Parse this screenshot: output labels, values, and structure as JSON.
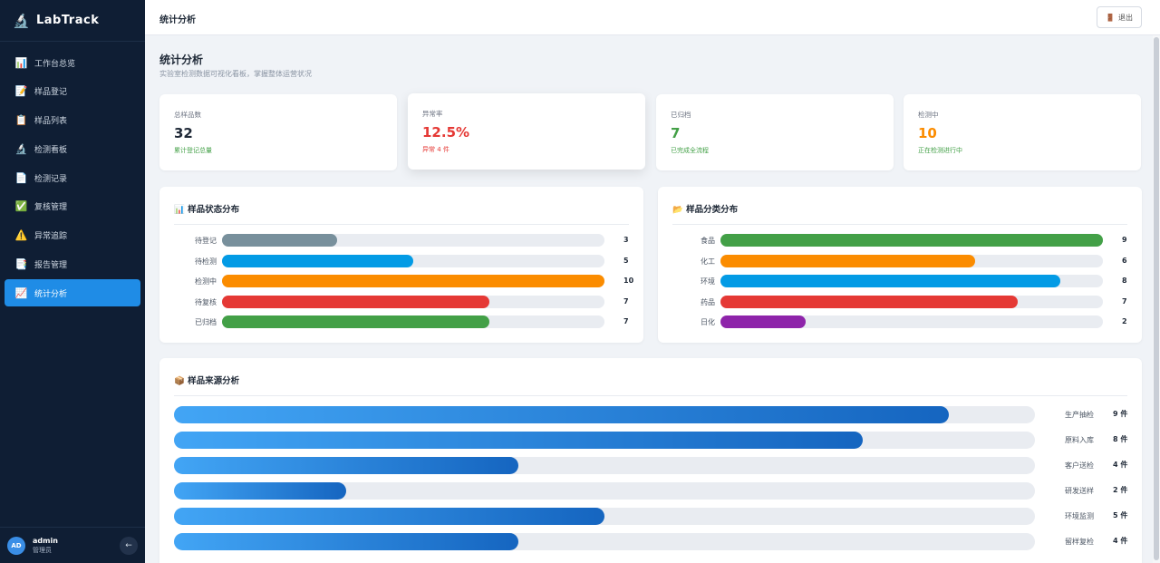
{
  "app": {
    "brand": "LabTrack",
    "brand_icon": "microscope-icon"
  },
  "sidebar": {
    "items": [
      {
        "label": "工作台总览",
        "icon": "📊",
        "icon_name": "bar-chart-icon"
      },
      {
        "label": "样品登记",
        "icon": "📝",
        "icon_name": "memo-icon"
      },
      {
        "label": "样品列表",
        "icon": "📋",
        "icon_name": "clipboard-icon"
      },
      {
        "label": "检测看板",
        "icon": "🔬",
        "icon_name": "microscope-icon"
      },
      {
        "label": "检测记录",
        "icon": "📄",
        "icon_name": "document-icon"
      },
      {
        "label": "复核管理",
        "icon": "✅",
        "icon_name": "check-icon"
      },
      {
        "label": "异常追踪",
        "icon": "⚠️",
        "icon_name": "warning-icon"
      },
      {
        "label": "报告管理",
        "icon": "📑",
        "icon_name": "report-icon"
      },
      {
        "label": "统计分析",
        "icon": "📈",
        "icon_name": "trend-chart-icon",
        "active": true
      }
    ],
    "user": {
      "avatar": "AD",
      "name": "admin",
      "role": "管理员",
      "logout_icon": "←"
    }
  },
  "header": {
    "title": "统计分析",
    "exit_label": "退出",
    "exit_icon": "🚪"
  },
  "page": {
    "title": "统计分析",
    "subtitle": "实验室检测数据可视化看板，掌握整体运营状况"
  },
  "stats": [
    {
      "label": "总样品数",
      "value": "32",
      "note": "累计登记总量",
      "value_color": "#1f2937",
      "note_color": "#43a047"
    },
    {
      "label": "异常率",
      "value": "12.5%",
      "note": "异常 4 件",
      "value_color": "#e53935",
      "note_color": "#e53935"
    },
    {
      "label": "已归档",
      "value": "7",
      "note": "已完成全流程",
      "value_color": "#43a047",
      "note_color": "#43a047"
    },
    {
      "label": "检测中",
      "value": "10",
      "note": "正在检测进行中",
      "value_color": "#fb8c00",
      "note_color": "#43a047"
    }
  ],
  "status_panel": {
    "title": "📊 样品状态分布",
    "max": 10,
    "rows": [
      {
        "label": "待登记",
        "value": 3,
        "color": "#78909c"
      },
      {
        "label": "待检测",
        "value": 5,
        "color": "#039be5"
      },
      {
        "label": "检测中",
        "value": 10,
        "color": "#fb8c00"
      },
      {
        "label": "待复核",
        "value": 7,
        "color": "#e53935"
      },
      {
        "label": "已归档",
        "value": 7,
        "color": "#43a047"
      }
    ]
  },
  "category_panel": {
    "title": "📂 样品分类分布",
    "max": 9,
    "rows": [
      {
        "label": "食品",
        "value": 9,
        "color": "#43a047"
      },
      {
        "label": "化工",
        "value": 6,
        "color": "#fb8c00"
      },
      {
        "label": "环境",
        "value": 8,
        "color": "#039be5"
      },
      {
        "label": "药品",
        "value": 7,
        "color": "#e53935"
      },
      {
        "label": "日化",
        "value": 2,
        "color": "#8e24aa"
      }
    ]
  },
  "source_panel": {
    "title": "📦 样品来源分析",
    "max": 10,
    "rows": [
      {
        "label": "生产抽检",
        "value": 9,
        "count": "9 件"
      },
      {
        "label": "原料入库",
        "value": 8,
        "count": "8 件"
      },
      {
        "label": "客户送检",
        "value": 4,
        "count": "4 件"
      },
      {
        "label": "研发送样",
        "value": 2,
        "count": "2 件"
      },
      {
        "label": "环境监测",
        "value": 5,
        "count": "5 件"
      },
      {
        "label": "留样复检",
        "value": 4,
        "count": "4 件"
      }
    ]
  }
}
